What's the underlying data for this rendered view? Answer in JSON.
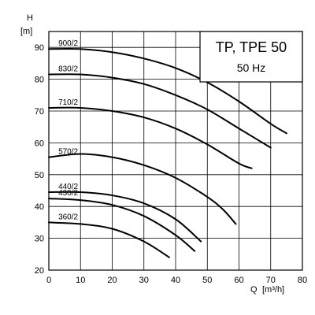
{
  "chart_data": {
    "type": "line",
    "title": "TP, TPE 50",
    "subtitle": "50 Hz",
    "ylabel": "H",
    "yunit": "[m]",
    "xlabel": "Q",
    "xunit": "[m³/h]",
    "xlim": [
      0,
      80
    ],
    "ylim": [
      20,
      95
    ],
    "xticks": [
      "0",
      "10",
      "20",
      "30",
      "40",
      "50",
      "60",
      "70",
      "80"
    ],
    "yticks": [
      "20",
      "30",
      "40",
      "50",
      "60",
      "70",
      "80",
      "90"
    ],
    "grid": true,
    "series": [
      {
        "name": "900/2",
        "points": [
          [
            0,
            89.5
          ],
          [
            10,
            89.5
          ],
          [
            20,
            88.5
          ],
          [
            30,
            86.5
          ],
          [
            40,
            83.5
          ],
          [
            50,
            79
          ],
          [
            60,
            73
          ],
          [
            70,
            66
          ],
          [
            75,
            63
          ]
        ]
      },
      {
        "name": "830/2",
        "points": [
          [
            0,
            81.5
          ],
          [
            10,
            81.5
          ],
          [
            20,
            80.5
          ],
          [
            30,
            78.5
          ],
          [
            40,
            75
          ],
          [
            50,
            70.5
          ],
          [
            60,
            64.5
          ],
          [
            70,
            58.5
          ]
        ]
      },
      {
        "name": "710/2",
        "points": [
          [
            0,
            71
          ],
          [
            10,
            71
          ],
          [
            20,
            70
          ],
          [
            30,
            68
          ],
          [
            40,
            64.5
          ],
          [
            50,
            59.5
          ],
          [
            60,
            53.5
          ],
          [
            64,
            52
          ]
        ]
      },
      {
        "name": "570/2",
        "points": [
          [
            0,
            55.5
          ],
          [
            10,
            56.5
          ],
          [
            20,
            55.5
          ],
          [
            30,
            53
          ],
          [
            40,
            49
          ],
          [
            50,
            43
          ],
          [
            55,
            39
          ],
          [
            59,
            34.5
          ]
        ]
      },
      {
        "name": "440/2",
        "points": [
          [
            0,
            44.5
          ],
          [
            10,
            44.5
          ],
          [
            20,
            43.5
          ],
          [
            30,
            41
          ],
          [
            40,
            36
          ],
          [
            48,
            29
          ]
        ]
      },
      {
        "name": "430/2",
        "points": [
          [
            0,
            42.5
          ],
          [
            10,
            42
          ],
          [
            20,
            40.5
          ],
          [
            30,
            37
          ],
          [
            40,
            31
          ],
          [
            46,
            26
          ]
        ]
      },
      {
        "name": "360/2",
        "points": [
          [
            0,
            35
          ],
          [
            10,
            34.5
          ],
          [
            20,
            33
          ],
          [
            30,
            29
          ],
          [
            38,
            24
          ]
        ]
      }
    ]
  }
}
